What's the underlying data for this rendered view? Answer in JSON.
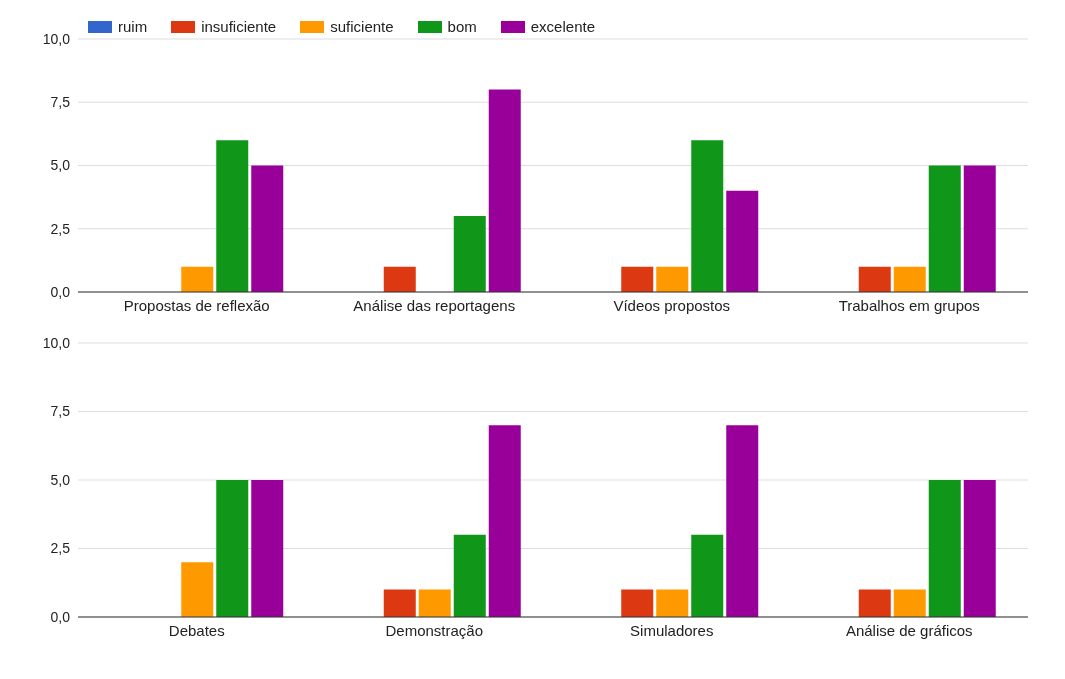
{
  "chart_data": [
    {
      "type": "bar",
      "categories": [
        "Propostas de reflexão",
        "Análise das reportagens",
        "Vídeos propostos",
        "Trabalhos em grupos"
      ],
      "series": [
        {
          "name": "ruim",
          "color": "#3366cc",
          "values": [
            0,
            0,
            0,
            0
          ]
        },
        {
          "name": "insuficiente",
          "color": "#dc3912",
          "values": [
            0,
            1,
            1,
            1
          ]
        },
        {
          "name": "suficiente",
          "color": "#ff9900",
          "values": [
            1,
            0,
            1,
            1
          ]
        },
        {
          "name": "bom",
          "color": "#109618",
          "values": [
            6,
            3,
            6,
            5
          ]
        },
        {
          "name": "excelente",
          "color": "#990099",
          "values": [
            5,
            8,
            4,
            5
          ]
        }
      ],
      "ylim": [
        0,
        10
      ],
      "yticks": [
        {
          "value": 0,
          "label": "0,0"
        },
        {
          "value": 2.5,
          "label": "2,5"
        },
        {
          "value": 5,
          "label": "5,0"
        },
        {
          "value": 7.5,
          "label": "7,5"
        },
        {
          "value": 10,
          "label": "10,0"
        }
      ],
      "grid": "y",
      "legend": "top left"
    },
    {
      "type": "bar",
      "categories": [
        "Debates",
        "Demonstração",
        "Simuladores",
        "Análise de gráficos"
      ],
      "series": [
        {
          "color": "#3366cc",
          "values": [
            0,
            0,
            0,
            0
          ]
        },
        {
          "color": "#dc3912",
          "values": [
            0,
            1,
            1,
            1
          ]
        },
        {
          "color": "#ff9900",
          "values": [
            2,
            1,
            1,
            1
          ]
        },
        {
          "color": "#109618",
          "values": [
            5,
            3,
            3,
            5
          ]
        },
        {
          "color": "#990099",
          "values": [
            5,
            7,
            7,
            5
          ]
        }
      ],
      "ylim": [
        0,
        10
      ],
      "yticks": [
        {
          "value": 0,
          "label": "0,0"
        },
        {
          "value": 2.5,
          "label": "2,5"
        },
        {
          "value": 5,
          "label": "5,0"
        },
        {
          "value": 7.5,
          "label": "7,5"
        },
        {
          "value": 10,
          "label": "10,0"
        }
      ],
      "grid": "y",
      "legend": false
    }
  ]
}
